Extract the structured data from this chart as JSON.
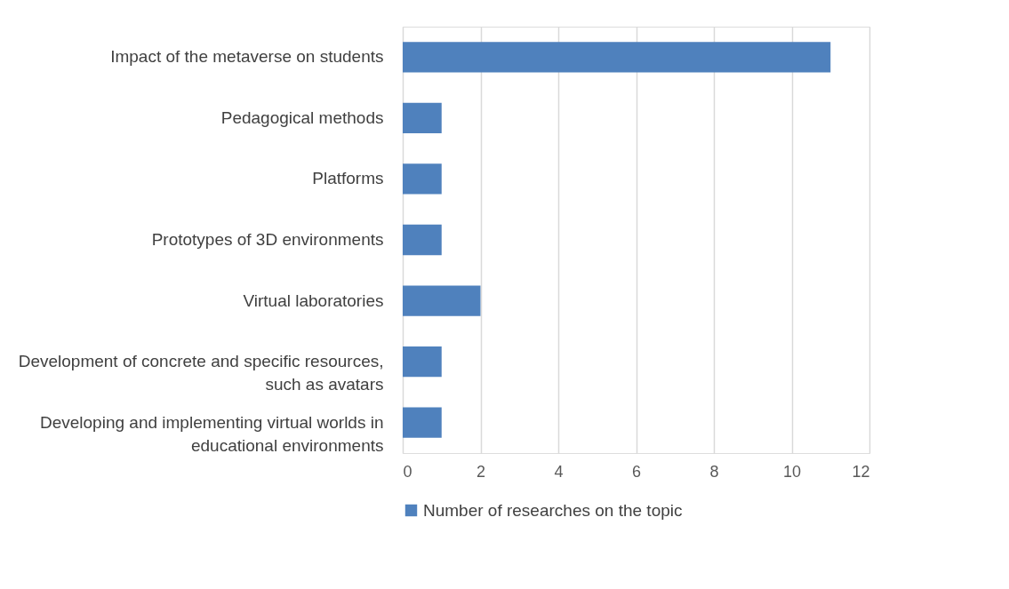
{
  "chart_data": {
    "type": "bar",
    "orientation": "horizontal",
    "categories": [
      "Impact of the metaverse on students",
      "Pedagogical methods",
      "Platforms",
      "Prototypes of 3D environments",
      "Virtual laboratories",
      "Development of concrete and specific resources, such as avatars",
      "Developing and implementing virtual worlds in educational environments"
    ],
    "series": [
      {
        "name": "Number of researches on the topic",
        "color": "#4f81bd",
        "values": [
          11,
          1,
          1,
          1,
          2,
          1,
          1
        ]
      }
    ],
    "xlim": [
      0,
      12
    ],
    "xticks": [
      0,
      2,
      4,
      6,
      8,
      10,
      12
    ],
    "grid": "x",
    "legend": "bottom"
  }
}
